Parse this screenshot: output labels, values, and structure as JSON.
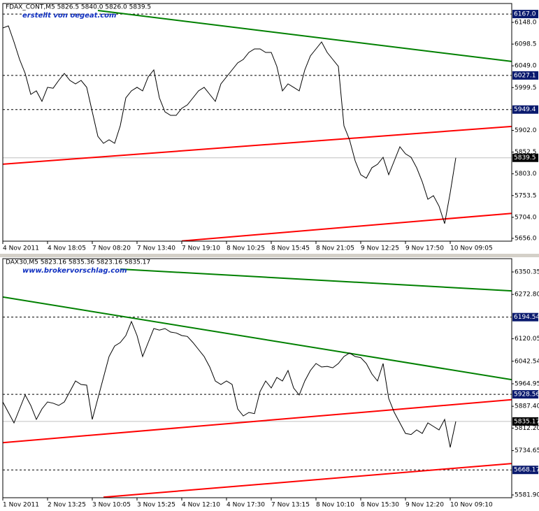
{
  "chart_data": [
    {
      "type": "line",
      "header": "FDAX_CONT,M5  5826.5 5840.0 5826.0 5839.5",
      "watermark": "erstellt von oegeat.com",
      "series": [
        {
          "color": "#000000",
          "values": [
            6135.3,
            6140,
            6103.4,
            6063.6,
            6031.8,
            5984.0,
            5992.0,
            5968.1,
            6000.0,
            5998,
            6015.9,
            6031.8,
            6015.9,
            6007.9,
            6015.9,
            6000.0,
            5944.2,
            5888.5,
            5872.6,
            5880.5,
            5872.6,
            5912.4,
            5976.1,
            5992.0,
            6000.0,
            5992.0,
            6023.8,
            6039.7,
            5976.1,
            5944.2,
            5936.3,
            5936.3,
            5952.2,
            5960.1,
            5976.1,
            5992.0,
            6000.0,
            5984.0,
            5968.1,
            6007.9,
            6023.8,
            6039.7,
            6055.7,
            6063.6,
            6079.5,
            6087.5,
            6087.5,
            6079.5,
            6079.5,
            6047.7,
            5992.0,
            6007.9,
            6000.0,
            5992.0,
            6039.7,
            6071.6,
            6087.5,
            6103.4,
            6079.5,
            6063.6,
            6047.7,
            5912.4,
            5880.5,
            5832.8,
            5801.0,
            5793.0,
            5816.9,
            5824.8,
            5840.7,
            5801.0,
            5832.8,
            5864.6,
            5848.7,
            5840.7,
            5816.9,
            5785.0,
            5745.2,
            5753.2,
            5729.3,
            5689.5,
            5760,
            5839.5
          ]
        }
      ],
      "trend_lines": [
        {
          "color": "#008000",
          "x": [
            17,
            91
          ],
          "y": [
            6175,
            6059
          ]
        },
        {
          "color": "#ff0000",
          "x": [
            0,
            91
          ],
          "y": [
            5825,
            5911
          ]
        },
        {
          "color": "#ff0000",
          "x": [
            32,
            91
          ],
          "y": [
            5650,
            5713
          ]
        }
      ],
      "levels": [
        {
          "value": 6167,
          "label": "6167.0"
        },
        6027.1,
        5949.4
      ],
      "current": 5839.5,
      "xlim": [
        0,
        91
      ],
      "xticks": [
        {
          "value": 0,
          "label": "4 Nov 2011"
        },
        {
          "value": 8,
          "label": "4 Nov 18:05"
        },
        {
          "value": 16,
          "label": "7 Nov 08:20"
        },
        {
          "value": 24,
          "label": "7 Nov 13:40"
        },
        {
          "value": 32,
          "label": "7 Nov 19:10"
        },
        {
          "value": 40,
          "label": "8 Nov 10:25"
        },
        {
          "value": 48,
          "label": "8 Nov 15:45"
        },
        {
          "value": 56,
          "label": "8 Nov 21:05"
        },
        {
          "value": 64,
          "label": "9 Nov 12:25"
        },
        {
          "value": 72,
          "label": "9 Nov 17:50"
        },
        {
          "value": 80,
          "label": "10 Nov 09:05"
        }
      ],
      "ylim": [
        5649.6,
        6191
      ],
      "yticks": [
        {
          "value": 6148,
          "label": "6148.0"
        },
        6098.5,
        {
          "value": 6049,
          "label": "6049.0"
        },
        5999.5,
        {
          "value": 5902,
          "label": "5902.0"
        },
        5852.5,
        {
          "value": 5803,
          "label": "5803.0"
        },
        5753.5,
        {
          "value": 5704,
          "label": "5704.0"
        },
        {
          "value": 5656,
          "label": "5656.0"
        }
      ]
    },
    {
      "type": "line",
      "header": "DAX30,M5  5823.16 5835.36 5823.16 5835.17",
      "watermark": "www.brokervorschlag.com",
      "series": [
        {
          "color": "#000000",
          "values": [
            5902.3,
            5866.2,
            5830.0,
            5878.2,
            5926.3,
            5890.2,
            5842.0,
            5878.2,
            5902.3,
            5898,
            5890.2,
            5902.3,
            5938.4,
            5974.5,
            5962.5,
            5960,
            5842.0,
            5914.3,
            5986.6,
            6058.8,
            6095.0,
            6107.0,
            6131.1,
            6179.3,
            6131.1,
            6058.8,
            6107.0,
            6155.2,
            6150,
            6155.2,
            6143.2,
            6140,
            6131.1,
            6128,
            6107.0,
            6083.0,
            6058.8,
            6022.7,
            5974.5,
            5962.5,
            5974.5,
            5962.5,
            5878.2,
            5854.1,
            5866.2,
            5862,
            5938.4,
            5974.5,
            5950.4,
            5986.6,
            5974.5,
            6010.7,
            5950.4,
            5926.3,
            5974.5,
            6010.7,
            6034.8,
            6022.7,
            6025,
            6020,
            6034.8,
            6058.8,
            6070.9,
            6058.8,
            6055,
            6034.8,
            5998.6,
            5974.5,
            6034.8,
            5914.3,
            5866.2,
            5830.0,
            5793.9,
            5790,
            5806.0,
            5793.9,
            5830.0,
            5818,
            5806.0,
            5842.0,
            5745.8,
            5835.17
          ]
        }
      ],
      "trend_lines": [
        {
          "color": "#008000",
          "x": [
            21,
            91
          ],
          "y": [
            6360,
            6285
          ]
        },
        {
          "color": "#008000",
          "x": [
            0,
            91
          ],
          "y": [
            6264,
            5979
          ]
        },
        {
          "color": "#ff0000",
          "x": [
            0,
            91
          ],
          "y": [
            5762,
            5910
          ]
        },
        {
          "color": "#ff0000",
          "x": [
            18,
            91
          ],
          "y": [
            5574,
            5690
          ]
        }
      ],
      "levels": [
        6194.54,
        5928.56,
        5668.17
      ],
      "current": 5835.17,
      "xlim": [
        0,
        91
      ],
      "xticks": [
        {
          "value": 0,
          "label": "1 Nov 2011"
        },
        {
          "value": 8,
          "label": "2 Nov 13:25"
        },
        {
          "value": 16,
          "label": "3 Nov 10:05"
        },
        {
          "value": 24,
          "label": "3 Nov 15:25"
        },
        {
          "value": 32,
          "label": "4 Nov 12:10"
        },
        {
          "value": 40,
          "label": "4 Nov 17:30"
        },
        {
          "value": 48,
          "label": "7 Nov 13:15"
        },
        {
          "value": 56,
          "label": "8 Nov 10:10"
        },
        {
          "value": 64,
          "label": "8 Nov 15:30"
        },
        {
          "value": 72,
          "label": "9 Nov 12:20"
        },
        {
          "value": 80,
          "label": "10 Nov 09:10"
        }
      ],
      "ylim": [
        5572.3,
        6396.1
      ],
      "yticks": [
        6350.35,
        {
          "value": 6272.8,
          "label": "6272.80"
        },
        6120.05,
        6042.54,
        5964.95,
        {
          "value": 5887.4,
          "label": "5887.40"
        },
        {
          "value": 5812.2,
          "label": "5812.20"
        },
        5734.65,
        {
          "value": 5581.9,
          "label": "5581.90"
        }
      ]
    }
  ]
}
